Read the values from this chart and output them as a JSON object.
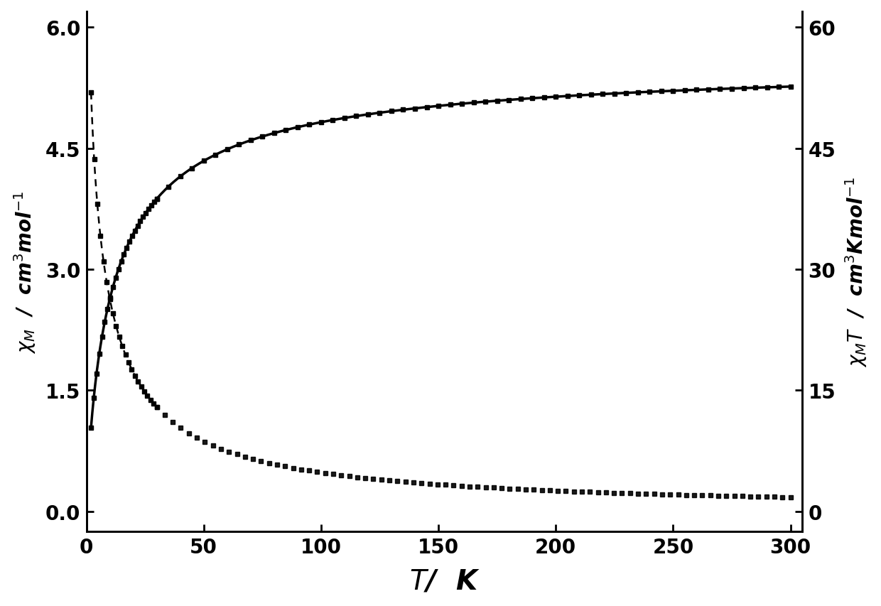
{
  "xlabel": "$\\bfit{T}$/ K",
  "ylabel_left": "$\\bfit{\\chi}_{\\mathbf{M}}$ / cm$^3$mol$^{-1}$",
  "ylabel_right": "$\\bfit{\\chi}_{\\mathbf{M}}$$\\bfit{T}$ / cm$^3$Kmol$^{-1}$",
  "xlim": [
    0,
    305
  ],
  "ylim_left": [
    -0.25,
    6.2
  ],
  "ylim_right": [
    -2.5,
    62
  ],
  "xticks": [
    0,
    50,
    100,
    150,
    200,
    250,
    300
  ],
  "yticks_left": [
    0.0,
    1.5,
    3.0,
    4.5,
    6.0
  ],
  "yticks_right": [
    0,
    15,
    30,
    45,
    60
  ],
  "background_color": "#ffffff",
  "line_color": "#000000",
  "figsize": [
    12.4,
    8.54
  ],
  "dpi": 100
}
